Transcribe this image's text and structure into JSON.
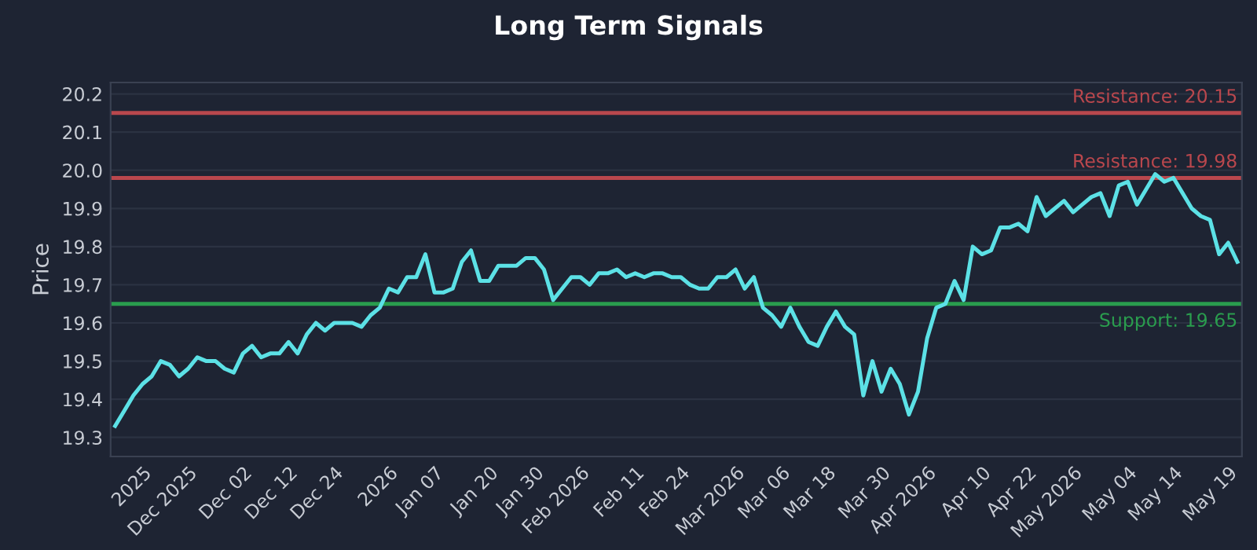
{
  "chart_data": {
    "type": "line",
    "title": "Long Term Signals",
    "ylabel": "Price",
    "categories": [
      null,
      null,
      null,
      "2025",
      null,
      null,
      null,
      null,
      "Dec 2025",
      null,
      null,
      null,
      null,
      null,
      "Dec 02",
      null,
      null,
      null,
      null,
      "Dec 12",
      null,
      null,
      null,
      null,
      "Dec 24",
      null,
      null,
      null,
      null,
      null,
      "2026",
      null,
      null,
      null,
      null,
      "Jan 07",
      null,
      null,
      null,
      null,
      null,
      "Jan 20",
      null,
      null,
      null,
      null,
      "Jan 30",
      null,
      null,
      null,
      null,
      "Feb 2026",
      null,
      null,
      null,
      null,
      null,
      "Feb 11",
      null,
      null,
      null,
      null,
      "Feb 24",
      null,
      null,
      null,
      null,
      null,
      "Mar 2026",
      null,
      null,
      null,
      null,
      "Mar 06",
      null,
      null,
      null,
      null,
      "Mar 18",
      null,
      null,
      null,
      null,
      null,
      "Mar 30",
      null,
      null,
      null,
      null,
      "Apr 2026",
      null,
      null,
      null,
      null,
      null,
      "Apr 10",
      null,
      null,
      null,
      null,
      "Apr 22",
      null,
      null,
      null,
      null,
      "May 2026",
      null,
      null,
      null,
      null,
      null,
      "May 04",
      null,
      null,
      null,
      null,
      "May 14",
      null,
      null,
      null,
      null,
      null,
      "May 19",
      null
    ],
    "series": [
      {
        "color": "#5ce1e6",
        "values": [
          19.33,
          19.37,
          19.41,
          19.44,
          19.46,
          19.5,
          19.49,
          19.46,
          19.48,
          19.51,
          19.5,
          19.5,
          19.48,
          19.47,
          19.52,
          19.54,
          19.51,
          19.52,
          19.52,
          19.55,
          19.52,
          19.57,
          19.6,
          19.58,
          19.6,
          19.6,
          19.6,
          19.59,
          19.62,
          19.64,
          19.69,
          19.68,
          19.72,
          19.72,
          19.78,
          19.68,
          19.68,
          19.69,
          19.76,
          19.79,
          19.71,
          19.71,
          19.75,
          19.75,
          19.75,
          19.77,
          19.77,
          19.74,
          19.66,
          19.69,
          19.72,
          19.72,
          19.7,
          19.73,
          19.73,
          19.74,
          19.72,
          19.73,
          19.72,
          19.73,
          19.73,
          19.72,
          19.72,
          19.7,
          19.69,
          19.69,
          19.72,
          19.72,
          19.74,
          19.69,
          19.72,
          19.64,
          19.62,
          19.59,
          19.64,
          19.59,
          19.55,
          19.54,
          19.59,
          19.63,
          19.59,
          19.57,
          19.41,
          19.5,
          19.42,
          19.48,
          19.44,
          19.36,
          19.42,
          19.56,
          19.64,
          19.65,
          19.71,
          19.66,
          19.8,
          19.78,
          19.79,
          19.85,
          19.85,
          19.86,
          19.84,
          19.93,
          19.88,
          19.9,
          19.92,
          19.89,
          19.91,
          19.93,
          19.94,
          19.88,
          19.96,
          19.97,
          19.91,
          19.95,
          19.99,
          19.97,
          19.98,
          19.94,
          19.9,
          19.88,
          19.87,
          19.78,
          19.81,
          19.76
        ]
      }
    ],
    "ylim": [
      19.25,
      20.23
    ],
    "yticks": [
      19.3,
      19.4,
      19.5,
      19.6,
      19.7,
      19.8,
      19.9,
      {
        "value": 20.0,
        "label": "20.0"
      },
      20.1,
      20.2
    ],
    "ref_lines": [
      {
        "axis": "y",
        "value": 20.15,
        "label": "Resistance: 20.15",
        "color": "#b9474d"
      },
      {
        "axis": "y",
        "value": 19.98,
        "label": "Resistance: 19.98",
        "color": "#b9474d"
      },
      {
        "axis": "y",
        "value": 19.65,
        "label": "Support: 19.65",
        "color": "#2a9d4e"
      }
    ],
    "grid": "y",
    "line_style": "solid",
    "marker": "none",
    "legend": false
  }
}
